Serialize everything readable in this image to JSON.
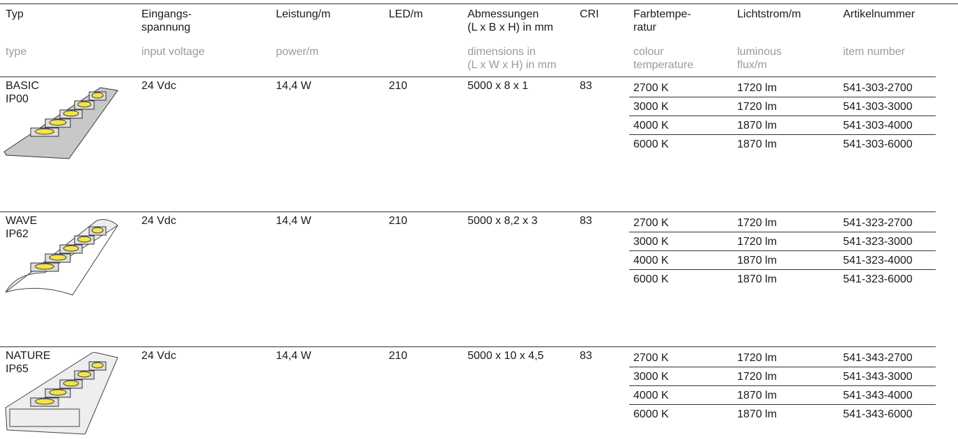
{
  "header": {
    "de": [
      "Typ",
      "Eingangs-\nspannung",
      "Leistung/m",
      "LED/m",
      "Abmessungen\n(L x B x H) in mm",
      "CRI",
      "Farbtempe-\nratur",
      "Lichtstrom/m",
      "Artikelnummer"
    ],
    "en": [
      "type",
      "input voltage",
      "power/m",
      "",
      "dimensions in\n(L x W x H) in mm",
      "",
      "colour\ntemperature",
      "luminous\nflux/m",
      "item number"
    ]
  },
  "groups": [
    {
      "name": "BASIC",
      "ip": "IP00",
      "voltage": "24 Vdc",
      "power": "14,4 W",
      "led": "210",
      "dimensions": "5000 x 8 x 1",
      "cri": "83",
      "variants": [
        {
          "temp": "2700 K",
          "flux": "1720 lm",
          "item": "541-303-2700"
        },
        {
          "temp": "3000 K",
          "flux": "1720 lm",
          "item": "541-303-3000"
        },
        {
          "temp": "4000 K",
          "flux": "1870 lm",
          "item": "541-303-4000"
        },
        {
          "temp": "6000 K",
          "flux": "1870 lm",
          "item": "541-303-6000"
        }
      ]
    },
    {
      "name": "WAVE",
      "ip": "IP62",
      "voltage": "24 Vdc",
      "power": "14,4 W",
      "led": "210",
      "dimensions": "5000 x 8,2 x 3",
      "cri": "83",
      "variants": [
        {
          "temp": "2700 K",
          "flux": "1720 lm",
          "item": "541-323-2700"
        },
        {
          "temp": "3000 K",
          "flux": "1720 lm",
          "item": "541-323-3000"
        },
        {
          "temp": "4000 K",
          "flux": "1870 lm",
          "item": "541-323-4000"
        },
        {
          "temp": "6000 K",
          "flux": "1870 lm",
          "item": "541-323-6000"
        }
      ]
    },
    {
      "name": "NATURE",
      "ip": "IP65",
      "voltage": "24 Vdc",
      "power": "14,4 W",
      "led": "210",
      "dimensions": "5000 x 10 x 4,5",
      "cri": "83",
      "variants": [
        {
          "temp": "2700 K",
          "flux": "1720 lm",
          "item": "541-343-2700"
        },
        {
          "temp": "3000 K",
          "flux": "1720 lm",
          "item": "541-343-3000"
        },
        {
          "temp": "4000 K",
          "flux": "1870 lm",
          "item": "541-343-4000"
        },
        {
          "temp": "6000 K",
          "flux": "1870 lm",
          "item": "541-343-6000"
        }
      ]
    }
  ]
}
